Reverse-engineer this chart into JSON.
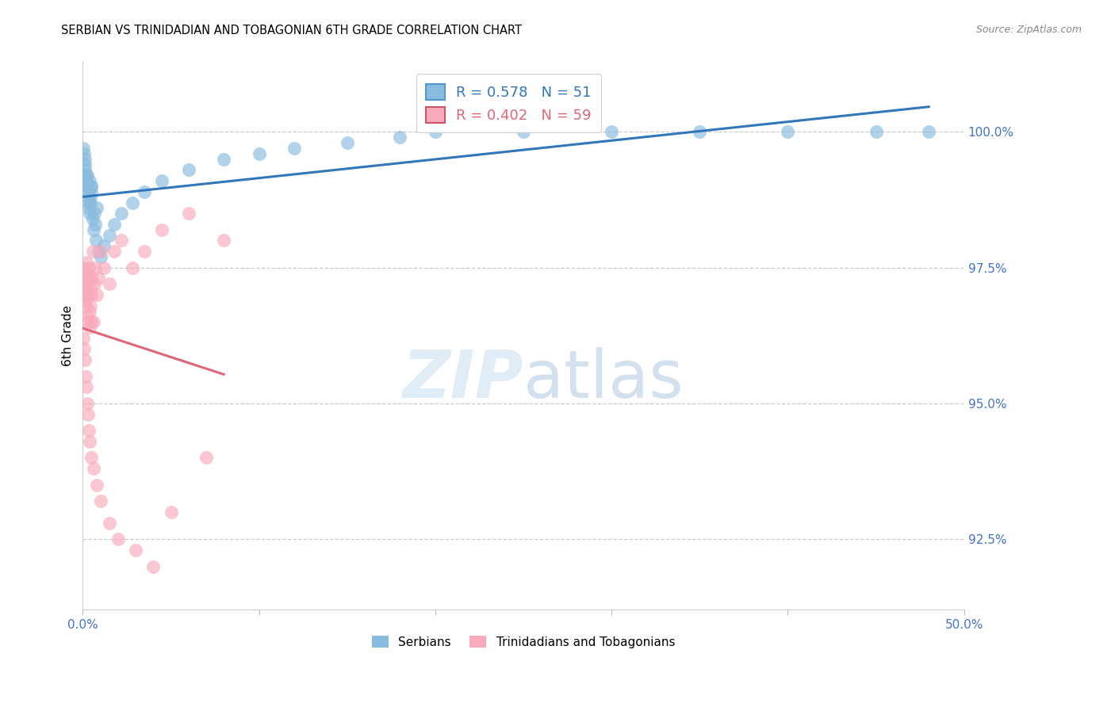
{
  "title": "SERBIAN VS TRINIDADIAN AND TOBAGONIAN 6TH GRADE CORRELATION CHART",
  "source": "Source: ZipAtlas.com",
  "ylabel": "6th Grade",
  "yticks": [
    92.5,
    95.0,
    97.5,
    100.0
  ],
  "ytick_labels": [
    "92.5%",
    "95.0%",
    "97.5%",
    "100.0%"
  ],
  "xlim": [
    0.0,
    50.0
  ],
  "ylim": [
    91.2,
    101.3
  ],
  "legend_serbian": "Serbians",
  "legend_trinidadian": "Trinidadians and Tobagonians",
  "R_serbian": 0.578,
  "N_serbian": 51,
  "R_trinidadian": 0.402,
  "N_trinidadian": 59,
  "color_serbian": "#88bbdd",
  "color_trinidadian": "#f8aabc",
  "color_line_serbian": "#3377bb",
  "color_line_trinidadian": "#dd6677",
  "serbian_x": [
    0.05,
    0.08,
    0.1,
    0.12,
    0.14,
    0.16,
    0.18,
    0.2,
    0.22,
    0.24,
    0.26,
    0.28,
    0.3,
    0.32,
    0.34,
    0.36,
    0.38,
    0.4,
    0.42,
    0.44,
    0.46,
    0.48,
    0.5,
    0.55,
    0.6,
    0.65,
    0.7,
    0.75,
    0.8,
    0.9,
    1.0,
    1.2,
    1.5,
    1.8,
    2.2,
    2.8,
    3.5,
    4.5,
    6.0,
    8.0,
    10.0,
    12.0,
    15.0,
    18.0,
    20.0,
    25.0,
    30.0,
    35.0,
    40.0,
    45.0,
    48.0
  ],
  "serbian_y": [
    99.7,
    99.6,
    99.5,
    99.4,
    99.3,
    99.2,
    99.1,
    99.0,
    99.1,
    99.0,
    99.2,
    98.9,
    98.8,
    99.0,
    98.7,
    98.6,
    99.1,
    98.5,
    98.8,
    98.7,
    99.0,
    98.9,
    99.0,
    98.4,
    98.2,
    98.5,
    98.3,
    98.0,
    98.6,
    97.8,
    97.7,
    97.9,
    98.1,
    98.3,
    98.5,
    98.7,
    98.9,
    99.1,
    99.3,
    99.5,
    99.6,
    99.7,
    99.8,
    99.9,
    100.0,
    100.0,
    100.0,
    100.0,
    100.0,
    100.0,
    100.0
  ],
  "trinidadian_x": [
    0.04,
    0.06,
    0.08,
    0.1,
    0.12,
    0.14,
    0.16,
    0.18,
    0.2,
    0.22,
    0.24,
    0.26,
    0.28,
    0.3,
    0.32,
    0.34,
    0.36,
    0.38,
    0.4,
    0.42,
    0.44,
    0.46,
    0.48,
    0.5,
    0.55,
    0.6,
    0.65,
    0.7,
    0.8,
    0.9,
    1.0,
    1.2,
    1.5,
    1.8,
    2.2,
    2.8,
    3.5,
    4.5,
    6.0,
    8.0,
    0.05,
    0.09,
    0.13,
    0.17,
    0.21,
    0.25,
    0.3,
    0.35,
    0.4,
    0.5,
    0.6,
    0.8,
    1.0,
    1.5,
    2.0,
    3.0,
    4.0,
    5.0,
    7.0
  ],
  "trinidadian_y": [
    97.5,
    97.3,
    97.0,
    97.2,
    97.4,
    97.1,
    96.8,
    96.9,
    97.6,
    97.0,
    96.5,
    97.2,
    97.4,
    97.0,
    96.6,
    97.3,
    97.5,
    96.7,
    96.4,
    96.8,
    97.1,
    96.5,
    97.0,
    97.3,
    97.8,
    96.5,
    97.2,
    97.5,
    97.0,
    97.3,
    97.8,
    97.5,
    97.2,
    97.8,
    98.0,
    97.5,
    97.8,
    98.2,
    98.5,
    98.0,
    96.2,
    96.0,
    95.8,
    95.5,
    95.3,
    95.0,
    94.8,
    94.5,
    94.3,
    94.0,
    93.8,
    93.5,
    93.2,
    92.8,
    92.5,
    92.3,
    92.0,
    93.0,
    94.0
  ]
}
